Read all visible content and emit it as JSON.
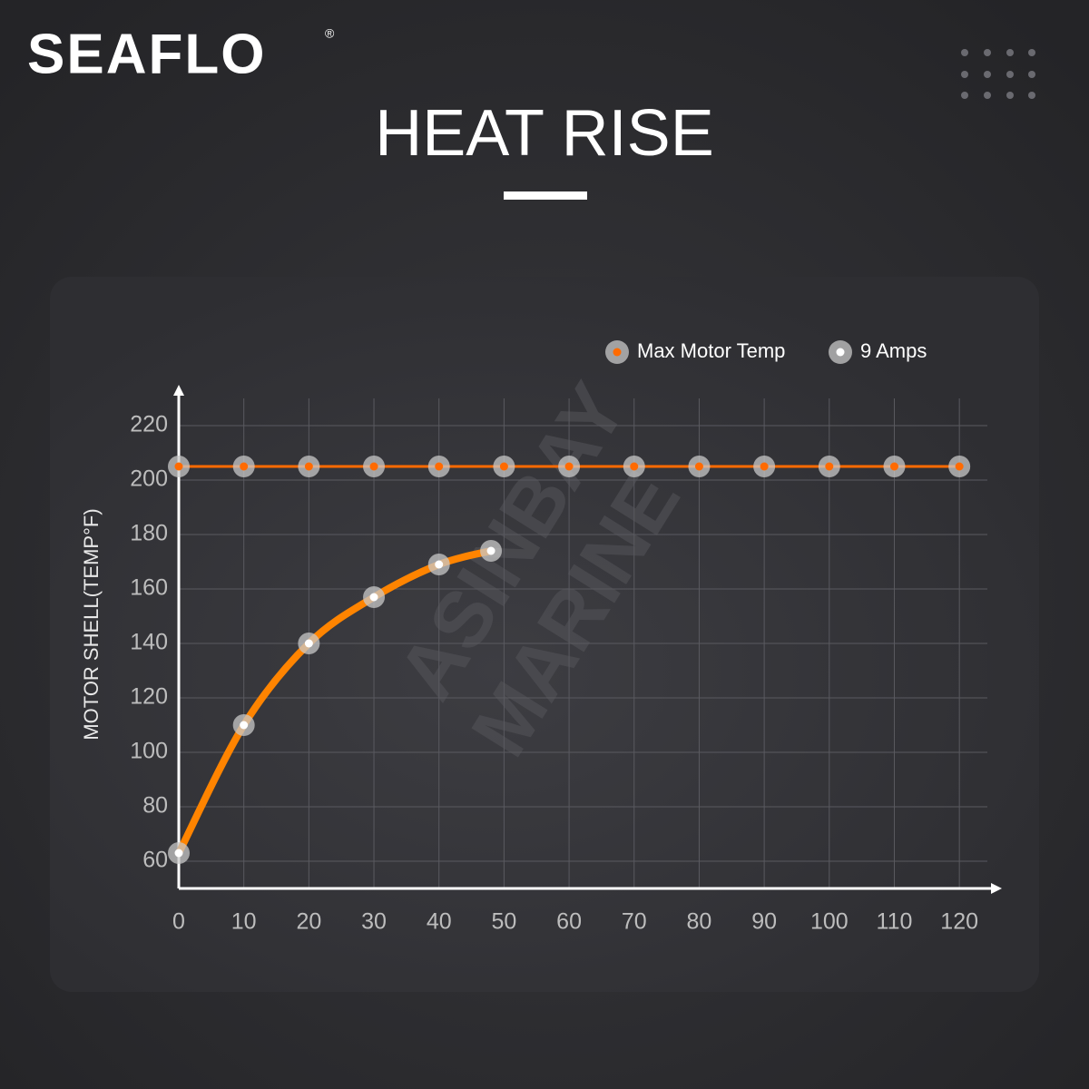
{
  "brand": {
    "logo": "SEAFLO",
    "registered": "®"
  },
  "chart_data": {
    "type": "line",
    "title": "HEAT RISE",
    "y_label": "MOTOR SHELL(TEMP°F)",
    "watermark": [
      "ASINBAY",
      "MARINE"
    ],
    "xlim": [
      0,
      125
    ],
    "xticks": [
      0,
      10,
      20,
      30,
      40,
      50,
      60,
      70,
      80,
      90,
      100,
      110,
      120
    ],
    "ylim": [
      50,
      230
    ],
    "yticks": [
      60,
      80,
      100,
      120,
      140,
      160,
      180,
      200,
      220
    ],
    "grid": true,
    "legend": "top-right",
    "series": [
      {
        "name": "Max Motor Temp",
        "color": "#ff6a00",
        "x": [
          0,
          10,
          20,
          30,
          40,
          50,
          60,
          70,
          80,
          90,
          100,
          110,
          120
        ],
        "values": [
          205,
          205,
          205,
          205,
          205,
          205,
          205,
          205,
          205,
          205,
          205,
          205,
          205
        ]
      },
      {
        "name": "9 Amps",
        "color": "#ff8400",
        "x": [
          0,
          10,
          20,
          30,
          40,
          48
        ],
        "values": [
          63,
          110,
          140,
          157,
          169,
          174
        ]
      }
    ]
  }
}
